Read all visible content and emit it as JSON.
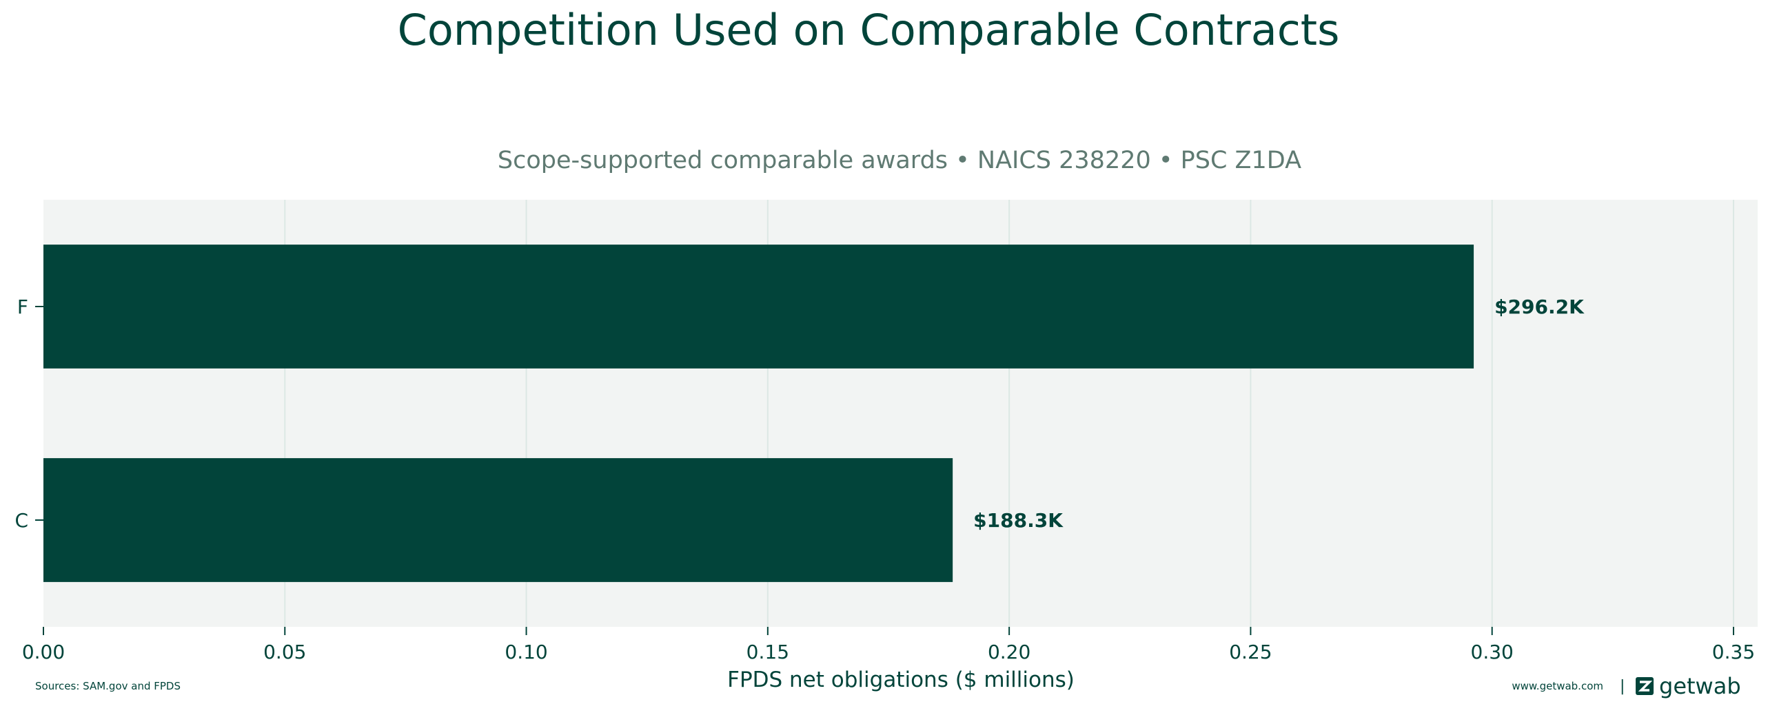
{
  "chart_data": {
    "type": "bar",
    "orientation": "horizontal",
    "title": "Competition Used on Comparable Contracts",
    "subtitle": "Scope-supported comparable awards • NAICS 238220 • PSC Z1DA",
    "categories": [
      "F",
      "C"
    ],
    "values": [
      0.2962,
      0.1883
    ],
    "value_labels": [
      "$296.2K",
      "$188.3K"
    ],
    "xlabel": "FPDS net obligations ($ millions)",
    "ylabel": "",
    "xlim": [
      0,
      0.355
    ],
    "xticks": [
      0.0,
      0.05,
      0.1,
      0.15,
      0.2,
      0.25,
      0.3,
      0.35
    ],
    "xtick_labels": [
      "0.00",
      "0.05",
      "0.10",
      "0.15",
      "0.20",
      "0.25",
      "0.30",
      "0.35"
    ],
    "grid": "x",
    "bar_color": "#02443a",
    "plot_background": "#f2f4f3"
  },
  "footer": {
    "sources": "Sources: SAM.gov and FPDS",
    "website": "www.getwab.com",
    "separator": "|",
    "brand": "getwab"
  },
  "colors": {
    "accent": "#02443a",
    "subtitle": "#5f7a72",
    "grid": "#dce8e4"
  },
  "icons": {
    "brand_logo": "getwab-logo-icon"
  }
}
